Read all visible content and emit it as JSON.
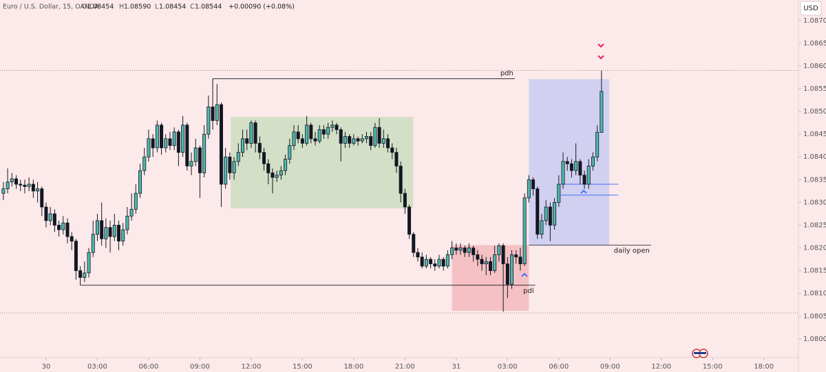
{
  "header": {
    "symbol": "Euro / U.S. Dollar, 15, OANDA",
    "o_label": "O",
    "o": "1.08454",
    "h_label": "H",
    "h": "1.08590",
    "l_label": "L",
    "l": "1.08454",
    "c_label": "C",
    "c": "1.08544",
    "change": "+0.00090 (+0.08%)",
    "currency": "USD"
  },
  "chart_data": {
    "type": "candlestick",
    "up_color": "#4fb7ad",
    "down_color": "#131722",
    "wick_color": "#131722",
    "xlim": [
      -0.79,
      186.1
    ],
    "ylim": [
      1.07959,
      1.08745
    ],
    "xticks": [
      {
        "value": 10,
        "label": "30"
      },
      {
        "value": 22,
        "label": "03:00"
      },
      {
        "value": 34,
        "label": "06:00"
      },
      {
        "value": 46,
        "label": "09:00"
      },
      {
        "value": 58,
        "label": "12:00"
      },
      {
        "value": 70,
        "label": "15:00"
      },
      {
        "value": 82,
        "label": "18:00"
      },
      {
        "value": 94,
        "label": "21:00"
      },
      {
        "value": 106,
        "label": "31"
      },
      {
        "value": 118,
        "label": "03:00"
      },
      {
        "value": 130,
        "label": "06:00"
      },
      {
        "value": 142,
        "label": "09:00"
      },
      {
        "value": 154,
        "label": "12:00"
      },
      {
        "value": 166,
        "label": "15:00"
      },
      {
        "value": 178,
        "label": "18:00"
      }
    ],
    "yticks": [
      {
        "value": 1.087,
        "label": "1.08700"
      },
      {
        "value": 1.0865,
        "label": "1.08650"
      },
      {
        "value": 1.086,
        "label": "1.08600"
      },
      {
        "value": 1.0855,
        "label": "1.08550"
      },
      {
        "value": 1.085,
        "label": "1.08500"
      },
      {
        "value": 1.0845,
        "label": "1.08450"
      },
      {
        "value": 1.084,
        "label": "1.08400"
      },
      {
        "value": 1.0835,
        "label": "1.08350"
      },
      {
        "value": 1.083,
        "label": "1.08300"
      },
      {
        "value": 1.0825,
        "label": "1.08250"
      },
      {
        "value": 1.082,
        "label": "1.08200"
      },
      {
        "value": 1.0815,
        "label": "1.08150"
      },
      {
        "value": 1.081,
        "label": "1.08100"
      },
      {
        "value": 1.0805,
        "label": "1.08050"
      },
      {
        "value": 1.08,
        "label": "1.08000"
      }
    ],
    "x": [
      0,
      1,
      2,
      3,
      4,
      5,
      6,
      7,
      8,
      9,
      10,
      11,
      12,
      13,
      14,
      15,
      16,
      17,
      18,
      19,
      20,
      21,
      22,
      23,
      24,
      25,
      26,
      27,
      28,
      29,
      30,
      31,
      32,
      33,
      34,
      35,
      36,
      37,
      38,
      39,
      40,
      41,
      42,
      43,
      44,
      45,
      46,
      47,
      48,
      49,
      50,
      51,
      52,
      53,
      54,
      55,
      56,
      57,
      58,
      59,
      60,
      61,
      62,
      63,
      64,
      65,
      66,
      67,
      68,
      69,
      70,
      71,
      72,
      73,
      74,
      75,
      76,
      77,
      78,
      79,
      80,
      81,
      82,
      83,
      84,
      85,
      86,
      87,
      88,
      89,
      90,
      91,
      92,
      93,
      94,
      95,
      96,
      97,
      98,
      99,
      100,
      101,
      102,
      103,
      104,
      105,
      106,
      107,
      108,
      109,
      110,
      111,
      112,
      113,
      114,
      115,
      116,
      117,
      118,
      119,
      120,
      121,
      122,
      123,
      124,
      125,
      126,
      127,
      128,
      129,
      130,
      131,
      132,
      133,
      134,
      135,
      136,
      137,
      138,
      139,
      140
    ],
    "open": [
      1.0832,
      1.0833,
      1.08345,
      1.08352,
      1.0834,
      1.08338,
      1.08335,
      1.0834,
      1.08325,
      1.0833,
      1.0829,
      1.0826,
      1.08275,
      1.0825,
      1.0824,
      1.08255,
      1.08225,
      1.08215,
      1.0815,
      1.08135,
      1.08145,
      1.0819,
      1.0823,
      1.0826,
      1.0822,
      1.08245,
      1.08225,
      1.0825,
      1.08215,
      1.0824,
      1.0827,
      1.08285,
      1.0832,
      1.0837,
      1.084,
      1.0844,
      1.0842,
      1.0847,
      1.0842,
      1.0844,
      1.08425,
      1.08455,
      1.0841,
      1.0847,
      1.0838,
      1.0839,
      1.0842,
      1.08365,
      1.0845,
      1.0851,
      1.0848,
      1.08515,
      1.0834,
      1.084,
      1.08365,
      1.0839,
      1.0841,
      1.0844,
      1.0843,
      1.08475,
      1.0843,
      1.0841,
      1.08385,
      1.08365,
      1.08355,
      1.0836,
      1.0837,
      1.08395,
      1.08425,
      1.08455,
      1.0844,
      1.0843,
      1.0847,
      1.0844,
      1.08435,
      1.0846,
      1.0845,
      1.08465,
      1.0847,
      1.0846,
      1.0843,
      1.08445,
      1.0843,
      1.0844,
      1.08435,
      1.0844,
      1.08445,
      1.08425,
      1.08465,
      1.0843,
      1.0844,
      1.0842,
      1.0841,
      1.0838,
      1.0832,
      1.0829,
      1.0823,
      1.0819,
      1.0818,
      1.0816,
      1.08175,
      1.08165,
      1.0816,
      1.08175,
      1.0816,
      1.08185,
      1.082,
      1.08195,
      1.082,
      1.0819,
      1.082,
      1.08185,
      1.08175,
      1.08165,
      1.0817,
      1.0815,
      1.08185,
      1.08205,
      1.08165,
      1.0812,
      1.08185,
      1.0818,
      1.08165,
      1.0831,
      1.0835,
      1.0833,
      1.0823,
      1.0826,
      1.0829,
      1.0825,
      1.083,
      1.0834,
      1.0839,
      1.08385,
      1.0837,
      1.0839,
      1.0836,
      1.0834,
      1.0838,
      1.084,
      1.08454
    ],
    "high": [
      1.08345,
      1.08375,
      1.08365,
      1.0836,
      1.0835,
      1.0835,
      1.08355,
      1.0835,
      1.08345,
      1.08335,
      1.083,
      1.0829,
      1.08285,
      1.0826,
      1.0827,
      1.08265,
      1.08235,
      1.0822,
      1.0816,
      1.0817,
      1.082,
      1.0826,
      1.08275,
      1.083,
      1.08265,
      1.0826,
      1.08275,
      1.0826,
      1.08255,
      1.0829,
      1.0832,
      1.0834,
      1.08385,
      1.0842,
      1.0846,
      1.0845,
      1.0848,
      1.08475,
      1.0845,
      1.08455,
      1.08465,
      1.0846,
      1.0849,
      1.08475,
      1.0841,
      1.0844,
      1.08425,
      1.0847,
      1.08535,
      1.08572,
      1.0856,
      1.0852,
      1.0842,
      1.0841,
      1.084,
      1.0843,
      1.0846,
      1.0846,
      1.0848,
      1.0848,
      1.08445,
      1.0842,
      1.08395,
      1.08375,
      1.0837,
      1.0838,
      1.08405,
      1.0844,
      1.0847,
      1.0847,
      1.0845,
      1.0849,
      1.08475,
      1.08455,
      1.0847,
      1.0847,
      1.08475,
      1.0848,
      1.08475,
      1.08465,
      1.08455,
      1.0845,
      1.0845,
      1.08445,
      1.0845,
      1.08455,
      1.08455,
      1.08475,
      1.08485,
      1.0846,
      1.0845,
      1.0843,
      1.0842,
      1.0839,
      1.0833,
      1.08295,
      1.08235,
      1.082,
      1.0819,
      1.08185,
      1.0818,
      1.08175,
      1.08185,
      1.0818,
      1.08195,
      1.08215,
      1.0821,
      1.0821,
      1.08205,
      1.0821,
      1.08205,
      1.08195,
      1.08185,
      1.0818,
      1.0818,
      1.08205,
      1.0821,
      1.0821,
      1.0818,
      1.08195,
      1.08195,
      1.082,
      1.0832,
      1.0836,
      1.08355,
      1.08335,
      1.08275,
      1.08305,
      1.083,
      1.0831,
      1.0836,
      1.0841,
      1.084,
      1.08395,
      1.0843,
      1.08395,
      1.0837,
      1.08395,
      1.0841,
      1.0847,
      1.0859
    ],
    "low": [
      1.08305,
      1.0832,
      1.08335,
      1.0833,
      1.08325,
      1.0832,
      1.08325,
      1.0831,
      1.083,
      1.0827,
      1.08245,
      1.0825,
      1.08235,
      1.08225,
      1.0823,
      1.0821,
      1.08195,
      1.0813,
      1.08118,
      1.08125,
      1.08135,
      1.0818,
      1.08215,
      1.08205,
      1.082,
      1.0819,
      1.08215,
      1.08195,
      1.08205,
      1.0823,
      1.0826,
      1.08275,
      1.0831,
      1.0836,
      1.0839,
      1.084,
      1.0841,
      1.08405,
      1.0841,
      1.08415,
      1.08415,
      1.0838,
      1.084,
      1.0837,
      1.0836,
      1.0838,
      1.0831,
      1.08355,
      1.0844,
      1.0846,
      1.0847,
      1.0829,
      1.0833,
      1.0835,
      1.0835,
      1.0838,
      1.084,
      1.08415,
      1.0842,
      1.0841,
      1.08395,
      1.0837,
      1.0834,
      1.0832,
      1.08345,
      1.0835,
      1.0836,
      1.08385,
      1.08415,
      1.0843,
      1.0842,
      1.08425,
      1.0843,
      1.08425,
      1.0843,
      1.0844,
      1.0844,
      1.08455,
      1.0845,
      1.0839,
      1.0842,
      1.0842,
      1.08425,
      1.08425,
      1.0843,
      1.0843,
      1.08415,
      1.0842,
      1.0842,
      1.0842,
      1.0841,
      1.08395,
      1.08365,
      1.083,
      1.08275,
      1.0822,
      1.0818,
      1.0817,
      1.08155,
      1.08155,
      1.08155,
      1.0815,
      1.08155,
      1.0815,
      1.08155,
      1.08175,
      1.08185,
      1.08185,
      1.0818,
      1.0818,
      1.0817,
      1.0816,
      1.0815,
      1.0814,
      1.0814,
      1.08145,
      1.0817,
      1.0806,
      1.0809,
      1.0811,
      1.08165,
      1.0815,
      1.0816,
      1.083,
      1.08315,
      1.0822,
      1.0822,
      1.0825,
      1.08215,
      1.0824,
      1.0829,
      1.0833,
      1.0837,
      1.08355,
      1.0836,
      1.0834,
      1.0833,
      1.0833,
      1.0837,
      1.0839,
      1.08454
    ],
    "close": [
      1.0833,
      1.08345,
      1.08352,
      1.0834,
      1.08338,
      1.08335,
      1.0834,
      1.08325,
      1.0833,
      1.0829,
      1.0826,
      1.08275,
      1.0825,
      1.0824,
      1.08255,
      1.08225,
      1.08215,
      1.0815,
      1.08135,
      1.08145,
      1.0819,
      1.0823,
      1.0826,
      1.0822,
      1.08245,
      1.08225,
      1.0825,
      1.08215,
      1.0824,
      1.0827,
      1.08285,
      1.0832,
      1.0837,
      1.084,
      1.0844,
      1.0842,
      1.0847,
      1.0842,
      1.0844,
      1.08425,
      1.08455,
      1.0841,
      1.0847,
      1.0838,
      1.0839,
      1.0842,
      1.08365,
      1.0845,
      1.0851,
      1.0848,
      1.08515,
      1.0834,
      1.084,
      1.08365,
      1.0839,
      1.0841,
      1.0844,
      1.0843,
      1.08475,
      1.0843,
      1.0841,
      1.08385,
      1.08365,
      1.08355,
      1.0836,
      1.0837,
      1.08395,
      1.08425,
      1.08455,
      1.0844,
      1.0843,
      1.0847,
      1.0844,
      1.08435,
      1.0846,
      1.0845,
      1.08465,
      1.0847,
      1.0846,
      1.0843,
      1.08445,
      1.0843,
      1.0844,
      1.08435,
      1.0844,
      1.08445,
      1.08425,
      1.08465,
      1.0843,
      1.0844,
      1.0842,
      1.0841,
      1.0838,
      1.0832,
      1.0829,
      1.0823,
      1.0819,
      1.0818,
      1.0816,
      1.08175,
      1.08165,
      1.0816,
      1.08175,
      1.0816,
      1.08185,
      1.082,
      1.08195,
      1.082,
      1.0819,
      1.082,
      1.08185,
      1.08175,
      1.08165,
      1.0817,
      1.0815,
      1.08185,
      1.08205,
      1.08165,
      1.0812,
      1.08185,
      1.0818,
      1.08165,
      1.0831,
      1.0835,
      1.0833,
      1.0823,
      1.0826,
      1.0829,
      1.0825,
      1.083,
      1.0834,
      1.0839,
      1.08385,
      1.0837,
      1.0839,
      1.0836,
      1.0834,
      1.0838,
      1.084,
      1.08454,
      1.08544
    ],
    "drawings": {
      "boxes": [
        {
          "x0": 53.2,
          "x1": 95.9,
          "top": 1.08488,
          "bottom": 1.08287,
          "color": "#d3dfc6"
        },
        {
          "x0": 105,
          "x1": 123,
          "top": 1.08206,
          "bottom": 1.08062,
          "color": "#f5c1c4"
        },
        {
          "x0": 123,
          "x1": 141.8,
          "top": 1.08571,
          "bottom": 1.08206,
          "color": "#d2d0f0"
        }
      ],
      "lines": [
        {
          "label": "pdh",
          "price": 1.08572,
          "x0": 49,
          "x1": 119.7,
          "color": "#131722"
        },
        {
          "label": "pdl",
          "price": 1.08118,
          "x0": 18,
          "x1": 124.5,
          "color": "#131722"
        },
        {
          "label": "daily open",
          "price": 1.08206,
          "x0": 123,
          "x1": 151.6,
          "color": "#131722"
        },
        {
          "price": 1.0834,
          "x0": 130.5,
          "x1": 143.9,
          "color": "#2962ff"
        },
        {
          "price": 1.08316,
          "x0": 130.5,
          "x1": 143.9,
          "color": "#2962ff"
        }
      ],
      "dotted": [
        1.0859,
        1.08057
      ]
    }
  }
}
